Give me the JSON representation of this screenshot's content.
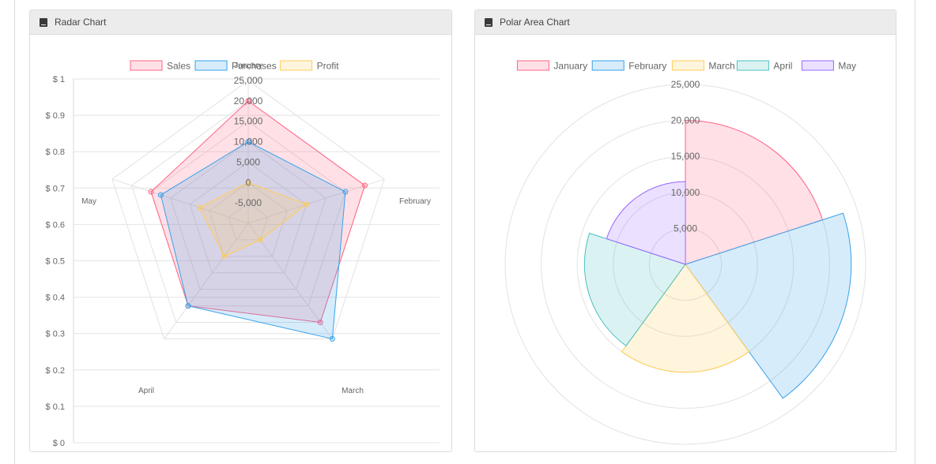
{
  "panels": {
    "radar": {
      "title": "Radar Chart",
      "icon": "book-icon"
    },
    "polar": {
      "title": "Polar Area Chart",
      "icon": "book-icon"
    }
  },
  "chart_data": [
    {
      "type": "radar",
      "title": "",
      "labels": [
        "January",
        "February",
        "March",
        "April",
        "May"
      ],
      "series": [
        {
          "name": "Sales",
          "values": [
            20000,
            20000,
            20000,
            15000,
            15000
          ],
          "stroke": "#ff6384",
          "fill": "rgba(255,99,132,0.2)"
        },
        {
          "name": "Purchases",
          "values": [
            10000,
            15000,
            25000,
            15000,
            12500
          ],
          "stroke": "#36a2eb",
          "fill": "rgba(54,162,235,0.2)"
        },
        {
          "name": "Profit",
          "values": [
            0,
            5000,
            -5000,
            0,
            2500
          ],
          "stroke": "#ffcd56",
          "fill": "rgba(255,205,86,0.2)"
        }
      ],
      "r_ticks": [
        "25,000",
        "20,000",
        "15,000",
        "10,000",
        "5,000",
        "0",
        "-5,000"
      ],
      "r_range": [
        -10000,
        25000
      ],
      "y_axis": {
        "ticks": [
          "$ 1",
          "$ 0.9",
          "$ 0.8",
          "$ 0.7",
          "$ 0.6",
          "$ 0.5",
          "$ 0.4",
          "$ 0.3",
          "$ 0.2",
          "$ 0.1",
          "$ 0"
        ],
        "range": [
          0,
          1
        ]
      },
      "legend": "top"
    },
    {
      "type": "polarArea",
      "title": "",
      "labels": [
        "January",
        "February",
        "March",
        "April",
        "May"
      ],
      "values": [
        20000,
        23000,
        15000,
        14000,
        11500
      ],
      "colors": [
        {
          "stroke": "#ff6384",
          "fill": "rgba(255,99,132,0.2)"
        },
        {
          "stroke": "#36a2eb",
          "fill": "rgba(54,162,235,0.2)"
        },
        {
          "stroke": "#ffcd56",
          "fill": "rgba(255,205,86,0.2)"
        },
        {
          "stroke": "#4bc0c0",
          "fill": "rgba(75,192,192,0.2)"
        },
        {
          "stroke": "#9966ff",
          "fill": "rgba(153,102,255,0.2)"
        }
      ],
      "r_ticks": [
        "25,000",
        "20,000",
        "15,000",
        "10,000",
        "5,000"
      ],
      "r_max": 25000,
      "legend": "top"
    }
  ]
}
